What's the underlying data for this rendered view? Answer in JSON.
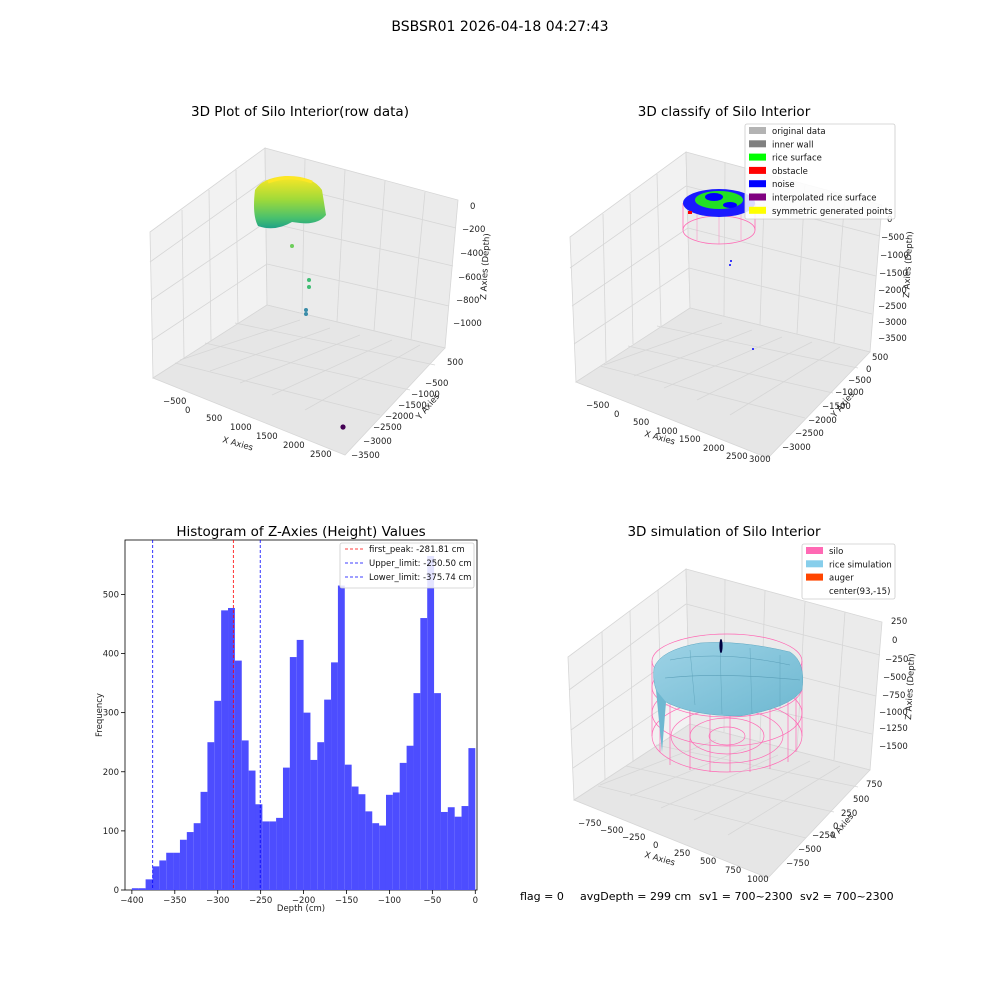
{
  "suptitle": "BSBSR01 2026-04-18 04:27:43",
  "panels": {
    "raw": {
      "title": "3D Plot of Silo Interior(row data)",
      "xlabel": "X Axies",
      "ylabel": "Y Axies",
      "zlabel": "Z Axies (Depth)",
      "xticks": [
        "−500",
        "0",
        "500",
        "1000",
        "1500",
        "2000",
        "2500"
      ],
      "yticks": [
        "500",
        "−500",
        "−1000",
        "−1500",
        "−2000",
        "−2500",
        "−3000",
        "−3500"
      ],
      "zticks": [
        "0",
        "−200",
        "−400",
        "−600",
        "−800",
        "−1000"
      ]
    },
    "classify": {
      "title": "3D classify of Silo Interior",
      "xlabel": "X Axies",
      "ylabel": "Y Axies",
      "zlabel": "Z Axies (Depth)",
      "xticks": [
        "−500",
        "0",
        "500",
        "1000",
        "1500",
        "2000",
        "2500",
        "3000"
      ],
      "yticks": [
        "500",
        "0",
        "−500",
        "−1000",
        "−1500",
        "−2000",
        "−2500",
        "−3000"
      ],
      "zticks": [
        "0",
        "−500",
        "−1000",
        "−1500",
        "−2000",
        "−2500",
        "−3000",
        "−3500"
      ],
      "legend": [
        {
          "label": "original data",
          "color": "#b3b3b3"
        },
        {
          "label": "inner wall",
          "color": "#808080"
        },
        {
          "label": "rice surface",
          "color": "#00ff00"
        },
        {
          "label": "obstacle",
          "color": "#ff0000"
        },
        {
          "label": "noise",
          "color": "#0000ff"
        },
        {
          "label": "interpolated rice surface",
          "color": "#800080"
        },
        {
          "label": "symmetric generated points",
          "color": "#ffff00"
        }
      ]
    },
    "simulation": {
      "title": "3D simulation of Silo Interior",
      "xlabel": "X Axies",
      "ylabel": "Y Axies",
      "zlabel": "Z Axies (Depth)",
      "xticks": [
        "−750",
        "−500",
        "−250",
        "0",
        "250",
        "500",
        "750",
        "1000"
      ],
      "yticks": [
        "750",
        "500",
        "250",
        "0",
        "−250",
        "−500",
        "−750"
      ],
      "zticks": [
        "250",
        "0",
        "−250",
        "−500",
        "−750",
        "−1000",
        "−1250",
        "−1500"
      ],
      "legend": [
        {
          "label": "silo",
          "color": "#ff69b4"
        },
        {
          "label": "rice simulation",
          "color": "#87ceeb"
        },
        {
          "label": "auger",
          "color": "#ff4500"
        },
        {
          "label": "center(93,-15)",
          "color": "#ffffff"
        }
      ]
    }
  },
  "footer": {
    "flag": "flag = 0",
    "avg_depth": "avgDepth = 299 cm",
    "sv1": "sv1 = 700~2300",
    "sv2": "sv2 = 700~2300"
  },
  "colors": {
    "histogram_bar": "#4d4dff",
    "first_peak_line": "#ff0000",
    "limit_line": "#0000ff"
  },
  "chart_data": {
    "type": "bar",
    "title": "Histogram of Z-Axies (Height) Values",
    "xlabel": "Depth (cm)",
    "ylabel": "Frequency",
    "xlim": [
      -408,
      2
    ],
    "ylim": [
      0,
      592
    ],
    "xticks": [
      -400,
      -350,
      -300,
      -250,
      -200,
      -150,
      -100,
      -50,
      0
    ],
    "yticks": [
      0,
      100,
      200,
      300,
      400,
      500
    ],
    "bin_width": 8,
    "bin_start": -400,
    "values": [
      3,
      3,
      18,
      40,
      50,
      63,
      63,
      85,
      98,
      113,
      166,
      250,
      320,
      473,
      477,
      388,
      253,
      202,
      145,
      116,
      116,
      122,
      207,
      394,
      423,
      300,
      220,
      250,
      322,
      385,
      515,
      212,
      175,
      162,
      133,
      113,
      109,
      161,
      165,
      215,
      244,
      333,
      460,
      565,
      333,
      132,
      140,
      124,
      142,
      240
    ],
    "reference_lines": [
      {
        "name": "first_peak: -281.81 cm",
        "x": -281.81,
        "style": "red-dashed"
      },
      {
        "name": "Upper_limit: -250.50 cm",
        "x": -250.5,
        "style": "blue-dashed"
      },
      {
        "name": "Lower_limit: -375.74 cm",
        "x": -375.74,
        "style": "blue-dashed"
      }
    ],
    "legend_position": "top-right"
  }
}
